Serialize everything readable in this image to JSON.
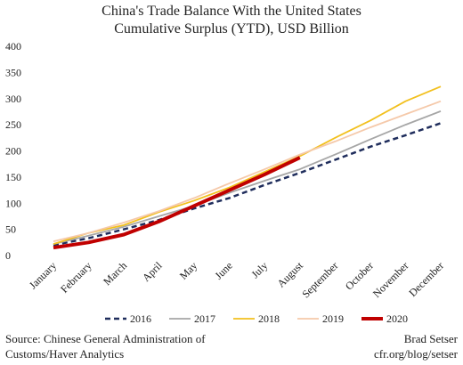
{
  "chart_data": {
    "type": "line",
    "title": "China's Trade Balance With the United States",
    "subtitle": "Cumulative Surplus (YTD), USD Billion",
    "categories": [
      "January",
      "February",
      "March",
      "April",
      "May",
      "June",
      "July",
      "August",
      "September",
      "October",
      "November",
      "December"
    ],
    "series": [
      {
        "name": "2016",
        "color": "#1f2d5c",
        "dash": true,
        "width": 2.5,
        "values": [
          20,
          33,
          50,
          68,
          90,
          110,
          135,
          158,
          183,
          208,
          230,
          253
        ]
      },
      {
        "name": "2017",
        "color": "#a6a6a6",
        "dash": false,
        "width": 1.8,
        "values": [
          22,
          38,
          55,
          75,
          95,
          120,
          143,
          165,
          193,
          222,
          250,
          276
        ]
      },
      {
        "name": "2018",
        "color": "#f2c01e",
        "dash": false,
        "width": 1.8,
        "values": [
          22,
          43,
          58,
          83,
          105,
          130,
          160,
          190,
          225,
          258,
          295,
          323
        ]
      },
      {
        "name": "2019",
        "color": "#f5c9aa",
        "dash": false,
        "width": 1.8,
        "values": [
          27,
          43,
          63,
          85,
          110,
          138,
          165,
          193,
          218,
          245,
          270,
          295
        ]
      },
      {
        "name": "2020",
        "color": "#c00000",
        "dash": false,
        "width": 4,
        "values": [
          15,
          25,
          40,
          65,
          95,
          125,
          155,
          187,
          null,
          null,
          null,
          null
        ]
      }
    ],
    "ylim": [
      0,
      400
    ],
    "yticks": [
      0,
      50,
      100,
      150,
      200,
      250,
      300,
      350,
      400
    ],
    "source": [
      "Source: Chinese General Administration of",
      "Customs/Haver Analytics"
    ],
    "credit": [
      "Brad Setser",
      "cfr.org/blog/setser"
    ]
  }
}
